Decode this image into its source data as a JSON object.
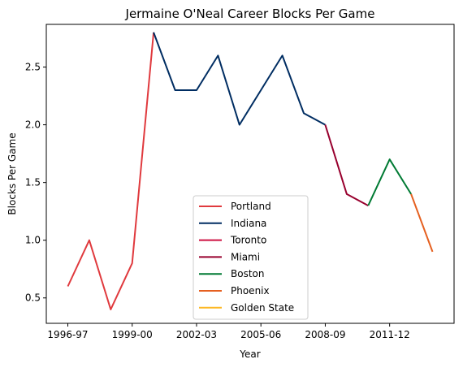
{
  "chart_data": {
    "type": "line",
    "title": "Jermaine O'Neal Career Blocks Per Game",
    "xlabel": "Year",
    "ylabel": "Blocks Per Game",
    "seasons": [
      "1996-97",
      "1997-98",
      "1998-99",
      "1999-00",
      "2000-01",
      "2001-02",
      "2002-03",
      "2003-04",
      "2004-05",
      "2005-06",
      "2006-07",
      "2007-08",
      "2008-09",
      "2009-10",
      "2010-11",
      "2011-12",
      "2012-13",
      "2013-14"
    ],
    "xticks": [
      "1996-97",
      "1999-00",
      "2002-03",
      "2005-06",
      "2008-09",
      "2011-12"
    ],
    "yticks": [
      "0.5",
      "1.0",
      "1.5",
      "2.0",
      "2.5"
    ],
    "ylim": [
      0.28,
      2.87
    ],
    "grid": false,
    "legend_position": "lower center",
    "series": [
      {
        "name": "Portland",
        "color": "#e03a3e",
        "points": [
          [
            "1996-97",
            0.6
          ],
          [
            "1997-98",
            1.0
          ],
          [
            "1998-99",
            0.4
          ],
          [
            "1999-00",
            0.8
          ],
          [
            "2000-01",
            2.8
          ]
        ]
      },
      {
        "name": "Indiana",
        "color": "#002d62",
        "points": [
          [
            "2000-01",
            2.8
          ],
          [
            "2001-02",
            2.3
          ],
          [
            "2002-03",
            2.3
          ],
          [
            "2003-04",
            2.6
          ],
          [
            "2004-05",
            2.0
          ],
          [
            "2005-06",
            2.3
          ],
          [
            "2006-07",
            2.6
          ],
          [
            "2007-08",
            2.1
          ],
          [
            "2008-09",
            2.0
          ]
        ]
      },
      {
        "name": "Toronto",
        "color": "#ce1141",
        "points": [
          [
            "2008-09",
            2.0
          ]
        ]
      },
      {
        "name": "Miami",
        "color": "#98002e",
        "points": [
          [
            "2008-09",
            2.0
          ],
          [
            "2009-10",
            1.4
          ],
          [
            "2010-11",
            1.3
          ]
        ]
      },
      {
        "name": "Boston",
        "color": "#007a33",
        "points": [
          [
            "2010-11",
            1.3
          ],
          [
            "2011-12",
            1.7
          ],
          [
            "2012-13",
            1.4
          ]
        ]
      },
      {
        "name": "Phoenix",
        "color": "#e56020",
        "points": [
          [
            "2012-13",
            1.4
          ],
          [
            "2013-14",
            0.9
          ]
        ]
      },
      {
        "name": "Golden State",
        "color": "#fdb927",
        "points": []
      }
    ]
  }
}
